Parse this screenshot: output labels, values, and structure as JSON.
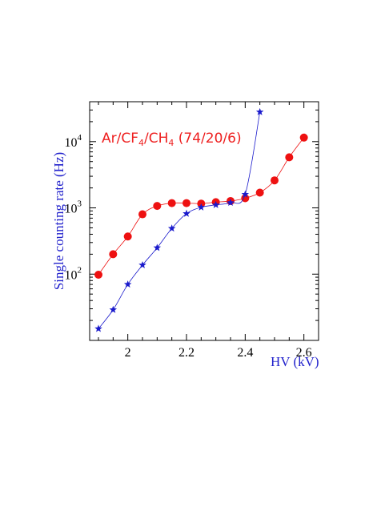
{
  "chart_data": {
    "type": "line",
    "xlabel": "HV (kV)",
    "ylabel": "Single counting rate (Hz)",
    "annotation": {
      "parts": [
        "Ar/CF",
        "4",
        "/CH",
        "4",
        " (74/20/6)"
      ],
      "color": "#ee2020"
    },
    "xlim": [
      1.87,
      2.65
    ],
    "ylim": [
      10,
      40000
    ],
    "yscale": "log",
    "x_ticks": [
      {
        "value": 2.0,
        "label": "2"
      },
      {
        "value": 2.2,
        "label": "2.2"
      },
      {
        "value": 2.4,
        "label": "2.4"
      },
      {
        "value": 2.6,
        "label": "2.6"
      }
    ],
    "y_ticks": [
      {
        "value": 100,
        "base": "10",
        "exp": "2"
      },
      {
        "value": 1000,
        "base": "10",
        "exp": "3"
      },
      {
        "value": 10000,
        "base": "10",
        "exp": "4"
      }
    ],
    "grid": false,
    "series": [
      {
        "marker": "circle",
        "color": "#ee1111",
        "x": [
          1.9,
          1.95,
          2.0,
          2.05,
          2.1,
          2.15,
          2.2,
          2.25,
          2.3,
          2.35,
          2.4,
          2.45,
          2.5,
          2.55,
          2.6
        ],
        "y": [
          98,
          200,
          370,
          800,
          1070,
          1180,
          1180,
          1160,
          1220,
          1270,
          1400,
          1700,
          2600,
          5800,
          11500
        ]
      },
      {
        "marker": "star",
        "color": "#1a1acc",
        "x": [
          1.9,
          1.95,
          2.0,
          2.05,
          2.1,
          2.15,
          2.2,
          2.25,
          2.3,
          2.35,
          2.4,
          2.45
        ],
        "y": [
          15,
          29,
          70,
          137,
          250,
          490,
          820,
          1020,
          1110,
          1200,
          1600,
          28000
        ]
      }
    ]
  }
}
